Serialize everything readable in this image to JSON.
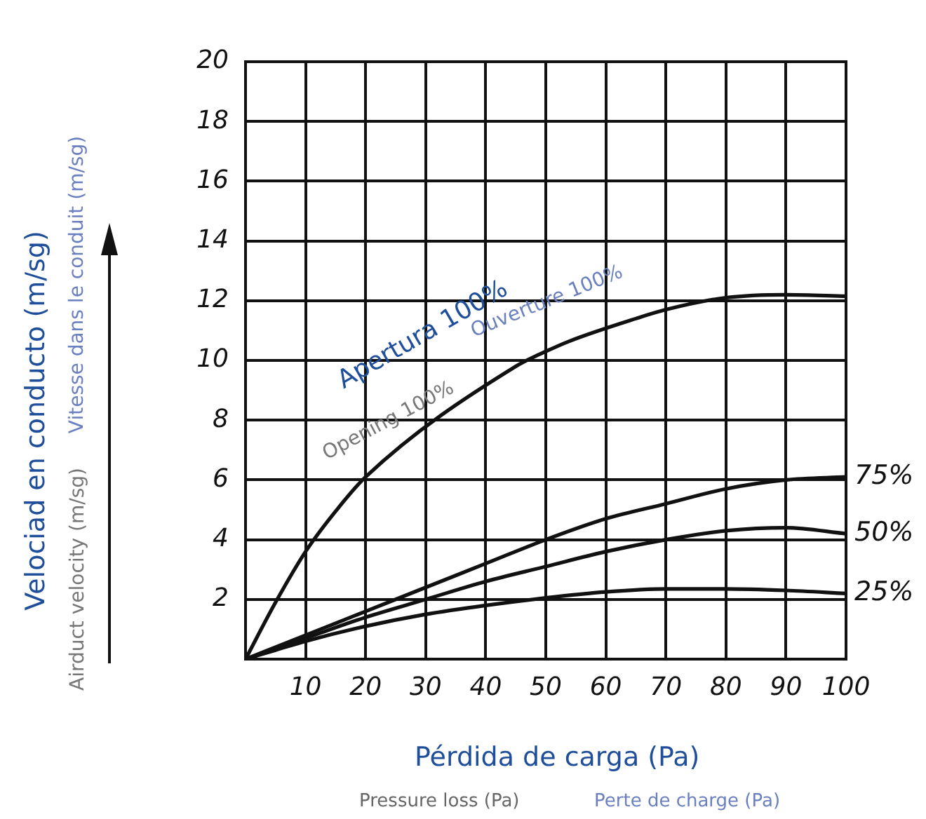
{
  "chart_data": {
    "type": "line",
    "xlabel": "Pérdida de carga (Pa)",
    "x": [
      0,
      5,
      10,
      20,
      30,
      40,
      50,
      60,
      70,
      80,
      90,
      100
    ],
    "series": [
      {
        "color": "#111111",
        "x": [
          0,
          5,
          10,
          15,
          20,
          45,
          50,
          54,
          65,
          70,
          80,
          90,
          100
        ],
        "values": [
          0,
          1.9,
          3.6,
          4.95,
          6.1,
          9.8,
          10.3,
          10.65,
          11.4,
          11.7,
          12.1,
          12.2,
          12.15
        ]
      },
      {
        "name": "75%",
        "color": "#111111",
        "values": [
          0,
          0.4,
          0.8,
          1.6,
          2.4,
          3.2,
          4.0,
          4.7,
          5.2,
          5.7,
          6.0,
          6.1
        ]
      },
      {
        "name": "50%",
        "color": "#111111",
        "values": [
          0,
          0.35,
          0.7,
          1.4,
          2.0,
          2.6,
          3.1,
          3.6,
          4.0,
          4.3,
          4.4,
          4.2
        ]
      },
      {
        "name": "25%",
        "color": "#111111",
        "values": [
          0,
          0.3,
          0.6,
          1.1,
          1.5,
          1.8,
          2.05,
          2.25,
          2.35,
          2.35,
          2.3,
          2.2
        ]
      }
    ],
    "xlim": [
      0,
      100
    ],
    "ylim": [
      0,
      20
    ],
    "xticks": [
      10,
      20,
      30,
      40,
      50,
      60,
      70,
      80,
      90,
      100
    ],
    "yticks": [
      2,
      4,
      6,
      8,
      10,
      12,
      14,
      16,
      18,
      20
    ],
    "grid": true,
    "legend": false,
    "marker": "none",
    "line_style": "solid",
    "annotations": [
      "Apertura 100%",
      "Opening 100%",
      "Ouverture 100%",
      "Vitesse dans le conduit (m/sg)",
      "Airduct velocity (m/sg)",
      "Pressure loss (Pa)",
      "Perte de charge (Pa)",
      "Velociad en conducto (m/sg)"
    ]
  }
}
